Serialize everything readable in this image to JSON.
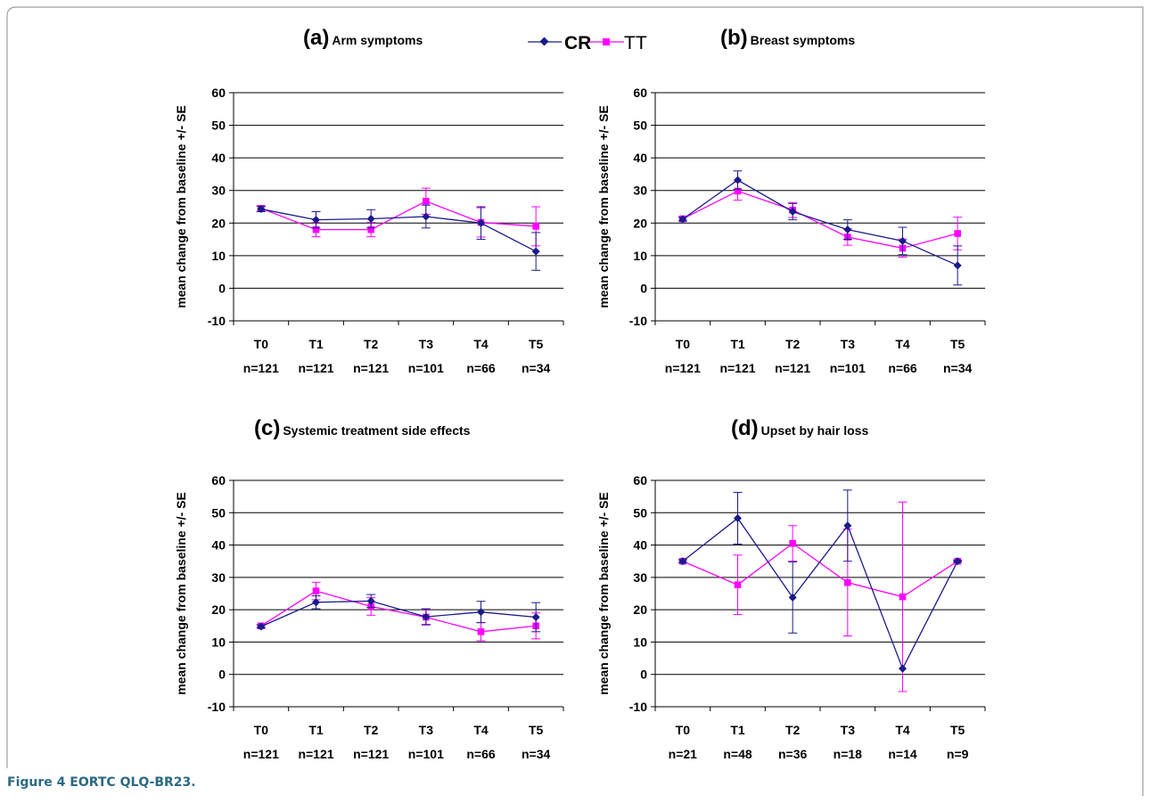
{
  "caption": {
    "label": "Figure 4",
    "title": "EORTC QLQ-BR23."
  },
  "legend": {
    "cr_label": "CR",
    "tt_label": "TT"
  },
  "colors": {
    "CR": "#1a1a8c",
    "TT": "#ff00ff",
    "caption": "#2a6a83"
  },
  "chart_data": [
    {
      "type": "line",
      "panel_letter": "(a)",
      "title": "Arm symptoms",
      "ylabel": "mean change from baseline +/- SE",
      "ylim": [
        -10,
        60
      ],
      "yticks": [
        -10,
        0,
        10,
        20,
        30,
        40,
        50,
        60
      ],
      "categories": [
        "T0",
        "T1",
        "T2",
        "T3",
        "T4",
        "T5"
      ],
      "n_labels": [
        "n=121",
        "n=121",
        "n=121",
        "n=101",
        "n=66",
        "n=34"
      ],
      "series": [
        {
          "name": "CR",
          "values": [
            24.3,
            21.0,
            21.3,
            22.0,
            20.0,
            11.3
          ],
          "errors": [
            0.8,
            2.5,
            2.8,
            3.5,
            5.0,
            5.8
          ]
        },
        {
          "name": "TT",
          "values": [
            24.5,
            18.0,
            18.0,
            26.7,
            20.2,
            19.0
          ],
          "errors": [
            0.8,
            2.2,
            2.2,
            4.0,
            4.5,
            6.0
          ]
        }
      ]
    },
    {
      "type": "line",
      "panel_letter": "(b)",
      "title": "Breast symptoms",
      "ylabel": "mean change from baseline +/- SE",
      "ylim": [
        -10,
        60
      ],
      "yticks": [
        -10,
        0,
        10,
        20,
        30,
        40,
        50,
        60
      ],
      "categories": [
        "T0",
        "T1",
        "T2",
        "T3",
        "T4",
        "T5"
      ],
      "n_labels": [
        "n=121",
        "n=121",
        "n=121",
        "n=101",
        "n=66",
        "n=34"
      ],
      "series": [
        {
          "name": "CR",
          "values": [
            21.2,
            33.2,
            23.5,
            18.0,
            14.5,
            7.0
          ],
          "errors": [
            0.6,
            2.8,
            2.5,
            3.0,
            4.2,
            6.0
          ]
        },
        {
          "name": "TT",
          "values": [
            21.3,
            29.8,
            24.0,
            15.7,
            12.3,
            16.8
          ],
          "errors": [
            0.6,
            2.8,
            2.3,
            2.5,
            2.8,
            5.0
          ]
        }
      ]
    },
    {
      "type": "line",
      "panel_letter": "(c)",
      "title": "Systemic treatment side effects",
      "ylabel": "mean change from baseline +/- SE",
      "ylim": [
        -10,
        60
      ],
      "yticks": [
        -10,
        0,
        10,
        20,
        30,
        40,
        50,
        60
      ],
      "categories": [
        "T0",
        "T1",
        "T2",
        "T3",
        "T4",
        "T5"
      ],
      "n_labels": [
        "n=121",
        "n=121",
        "n=121",
        "n=101",
        "n=66",
        "n=34"
      ],
      "series": [
        {
          "name": "CR",
          "values": [
            14.8,
            22.3,
            22.7,
            17.8,
            19.3,
            17.7
          ],
          "errors": [
            0.5,
            2.0,
            2.0,
            2.5,
            3.3,
            4.5
          ]
        },
        {
          "name": "TT",
          "values": [
            15.0,
            25.8,
            21.0,
            17.7,
            13.2,
            15.0
          ],
          "errors": [
            0.5,
            2.7,
            2.7,
            2.2,
            2.8,
            4.0
          ]
        }
      ]
    },
    {
      "type": "line",
      "panel_letter": "(d)",
      "title": "Upset by hair loss",
      "ylabel": "mean change from baseline +/- SE",
      "ylim": [
        -10,
        60
      ],
      "yticks": [
        -10,
        0,
        10,
        20,
        30,
        40,
        50,
        60
      ],
      "categories": [
        "T0",
        "T1",
        "T2",
        "T3",
        "T4",
        "T5"
      ],
      "n_labels": [
        "n=21",
        "n=48",
        "n=36",
        "n=18",
        "n=14",
        "n=9"
      ],
      "series": [
        {
          "name": "CR",
          "values": [
            35.0,
            48.3,
            23.8,
            46.0,
            1.8,
            35.0
          ],
          "errors": [
            0.5,
            8.0,
            11.0,
            11.0,
            0.0,
            0.3
          ]
        },
        {
          "name": "TT",
          "values": [
            35.0,
            27.7,
            40.5,
            28.4,
            24.0,
            35.0
          ],
          "errors": [
            0.5,
            9.2,
            5.5,
            16.5,
            29.3,
            0.3
          ]
        }
      ]
    }
  ]
}
